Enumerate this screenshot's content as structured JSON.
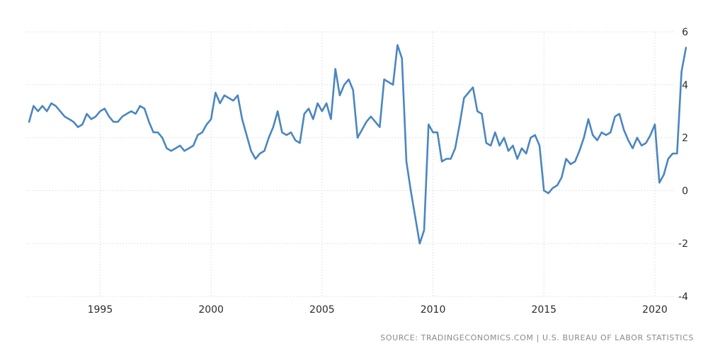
{
  "chart_data": {
    "type": "line",
    "title": "",
    "xlabel": "",
    "ylabel": "",
    "xlim": [
      1991.7,
      2021.5
    ],
    "ylim": [
      -4,
      6
    ],
    "y_ticks": [
      6,
      4,
      2,
      0,
      -2,
      -4
    ],
    "x_ticks": [
      1995,
      2000,
      2005,
      2010,
      2015,
      2020
    ],
    "grid": true,
    "legend": "none",
    "line_color": "#4a86c0",
    "series": [
      {
        "x": [
          1991.8,
          1992.0,
          1992.2,
          1992.4,
          1992.6,
          1992.8,
          1993.0,
          1993.2,
          1993.4,
          1993.6,
          1993.8,
          1994.0,
          1994.2,
          1994.4,
          1994.6,
          1994.8,
          1995.0,
          1995.2,
          1995.4,
          1995.6,
          1995.8,
          1996.0,
          1996.2,
          1996.4,
          1996.6,
          1996.8,
          1997.0,
          1997.2,
          1997.4,
          1997.6,
          1997.8,
          1998.0,
          1998.2,
          1998.4,
          1998.6,
          1998.8,
          1999.0,
          1999.2,
          1999.4,
          1999.6,
          1999.8,
          2000.0,
          2000.2,
          2000.4,
          2000.6,
          2000.8,
          2001.0,
          2001.2,
          2001.4,
          2001.6,
          2001.8,
          2002.0,
          2002.2,
          2002.4,
          2002.6,
          2002.8,
          2003.0,
          2003.2,
          2003.4,
          2003.6,
          2003.8,
          2004.0,
          2004.2,
          2004.4,
          2004.6,
          2004.8,
          2005.0,
          2005.2,
          2005.4,
          2005.6,
          2005.8,
          2006.0,
          2006.2,
          2006.4,
          2006.6,
          2006.8,
          2007.0,
          2007.2,
          2007.4,
          2007.6,
          2007.8,
          2008.0,
          2008.2,
          2008.4,
          2008.6,
          2008.8,
          2009.0,
          2009.2,
          2009.4,
          2009.6,
          2009.8,
          2010.0,
          2010.2,
          2010.4,
          2010.6,
          2010.8,
          2011.0,
          2011.2,
          2011.4,
          2011.6,
          2011.8,
          2012.0,
          2012.2,
          2012.4,
          2012.6,
          2012.8,
          2013.0,
          2013.2,
          2013.4,
          2013.6,
          2013.8,
          2014.0,
          2014.2,
          2014.4,
          2014.6,
          2014.8,
          2015.0,
          2015.2,
          2015.4,
          2015.6,
          2015.8,
          2016.0,
          2016.2,
          2016.4,
          2016.6,
          2016.8,
          2017.0,
          2017.2,
          2017.4,
          2017.6,
          2017.8,
          2018.0,
          2018.2,
          2018.4,
          2018.6,
          2018.8,
          2019.0,
          2019.2,
          2019.4,
          2019.6,
          2019.8,
          2020.0,
          2020.2,
          2020.4,
          2020.6,
          2020.8,
          2021.0,
          2021.2,
          2021.4
        ],
        "y": [
          2.6,
          3.2,
          3.0,
          3.2,
          3.0,
          3.3,
          3.2,
          3.0,
          2.8,
          2.7,
          2.6,
          2.4,
          2.5,
          2.9,
          2.7,
          2.8,
          3.0,
          3.1,
          2.8,
          2.6,
          2.6,
          2.8,
          2.9,
          3.0,
          2.9,
          3.2,
          3.1,
          2.6,
          2.2,
          2.2,
          2.0,
          1.6,
          1.5,
          1.6,
          1.7,
          1.5,
          1.6,
          1.7,
          2.1,
          2.2,
          2.5,
          2.7,
          3.7,
          3.3,
          3.6,
          3.5,
          3.4,
          3.6,
          2.7,
          2.1,
          1.5,
          1.2,
          1.4,
          1.5,
          2.0,
          2.4,
          3.0,
          2.2,
          2.1,
          2.2,
          1.9,
          1.8,
          2.9,
          3.1,
          2.7,
          3.3,
          3.0,
          3.3,
          2.7,
          4.6,
          3.6,
          4.0,
          4.2,
          3.8,
          2.0,
          2.3,
          2.6,
          2.8,
          2.6,
          2.4,
          4.2,
          4.1,
          4.0,
          5.5,
          5.0,
          1.1,
          0.0,
          -1.0,
          -2.0,
          -1.5,
          2.5,
          2.2,
          2.2,
          1.1,
          1.2,
          1.2,
          1.6,
          2.5,
          3.5,
          3.7,
          3.9,
          3.0,
          2.9,
          1.8,
          1.7,
          2.2,
          1.7,
          2.0,
          1.5,
          1.7,
          1.2,
          1.6,
          1.4,
          2.0,
          2.1,
          1.7,
          0.0,
          -0.1,
          0.1,
          0.2,
          0.5,
          1.2,
          1.0,
          1.1,
          1.5,
          2.0,
          2.7,
          2.1,
          1.9,
          2.2,
          2.1,
          2.2,
          2.8,
          2.9,
          2.3,
          1.9,
          1.6,
          2.0,
          1.7,
          1.8,
          2.1,
          2.5,
          0.3,
          0.6,
          1.2,
          1.4,
          1.4,
          4.5,
          5.4
        ]
      }
    ]
  },
  "footer": {
    "source_text": "SOURCE: TRADINGECONOMICS.COM | U.S. BUREAU OF LABOR STATISTICS"
  }
}
